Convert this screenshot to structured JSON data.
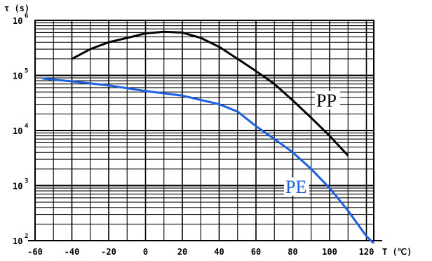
{
  "chart_data": {
    "type": "line",
    "title": "",
    "xlabel": "T (℃)",
    "ylabel": "τ (s)",
    "xlim": [
      -60,
      124
    ],
    "ylim": [
      100,
      1000000
    ],
    "yscale": "log",
    "grid": true,
    "x_ticks": [
      "-60",
      "-40",
      "-20",
      "0",
      "20",
      "40",
      "60",
      "80",
      "100",
      "120"
    ],
    "y_ticks": [
      {
        "base": "10",
        "exp": "2"
      },
      {
        "base": "10",
        "exp": "3"
      },
      {
        "base": "10",
        "exp": "4"
      },
      {
        "base": "10",
        "exp": "5"
      },
      {
        "base": "10",
        "exp": "6"
      }
    ],
    "series": [
      {
        "name": "PP",
        "color": "#000000",
        "points": [
          [
            -40,
            200000
          ],
          [
            -30,
            300000
          ],
          [
            -20,
            400000
          ],
          [
            -10,
            480000
          ],
          [
            0,
            580000
          ],
          [
            10,
            620000
          ],
          [
            20,
            600000
          ],
          [
            30,
            480000
          ],
          [
            40,
            330000
          ],
          [
            50,
            200000
          ],
          [
            60,
            120000
          ],
          [
            70,
            70000
          ],
          [
            80,
            35000
          ],
          [
            90,
            17000
          ],
          [
            100,
            8000
          ],
          [
            110,
            3500
          ]
        ]
      },
      {
        "name": "PE",
        "color": "#1c5fe0",
        "points": [
          [
            -56,
            88000
          ],
          [
            -40,
            78000
          ],
          [
            -20,
            66000
          ],
          [
            0,
            52000
          ],
          [
            20,
            43000
          ],
          [
            40,
            30000
          ],
          [
            50,
            22000
          ],
          [
            60,
            12000
          ],
          [
            70,
            7000
          ],
          [
            80,
            4000
          ],
          [
            90,
            2000
          ],
          [
            100,
            900
          ],
          [
            110,
            350
          ],
          [
            120,
            120
          ],
          [
            124,
            90
          ]
        ]
      }
    ]
  }
}
